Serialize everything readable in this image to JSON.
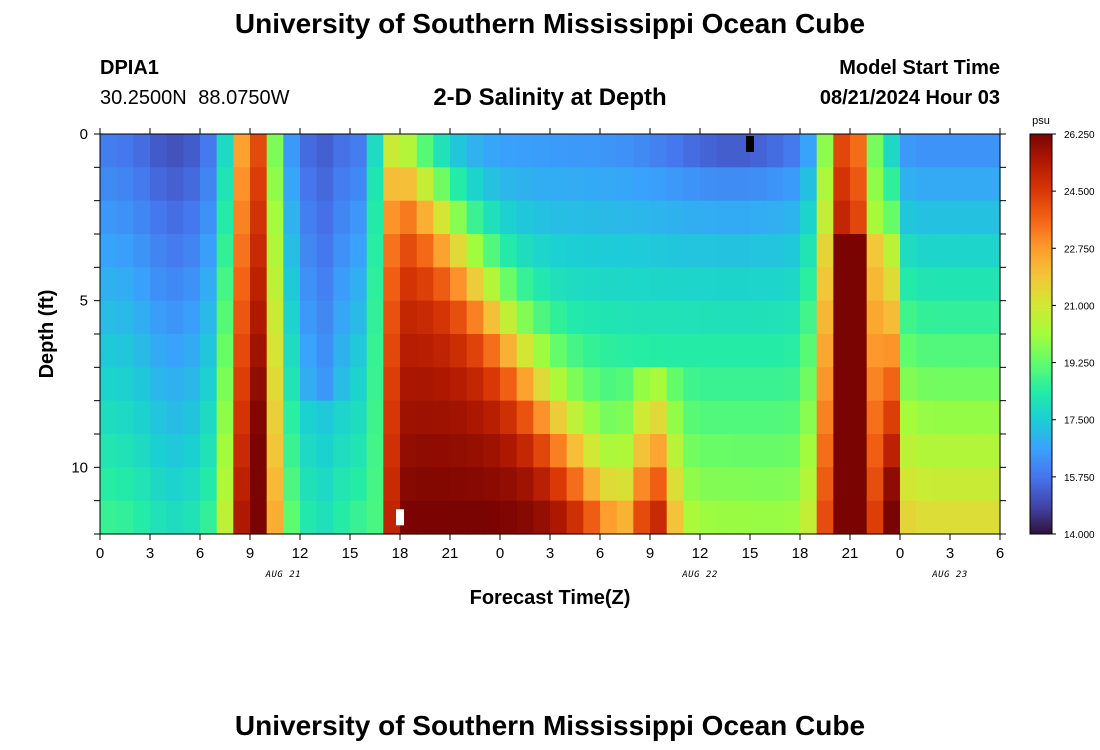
{
  "page": {
    "title_top": "University of Southern Mississippi Ocean Cube",
    "title_bottom": "University of Southern Mississippi Ocean Cube",
    "station_id": "DPIA1",
    "station_coords": "30.2500N  88.0750W",
    "plot_title": "2-D Salinity at Depth",
    "model_start_label": "Model Start Time",
    "model_start_value": "08/21/2024 Hour 03"
  },
  "chart_data": {
    "type": "heatmap",
    "title": "2-D Salinity at Depth",
    "xlabel": "Forecast Time(Z)",
    "ylabel": "Depth (ft)",
    "x_hours": [
      0,
      54
    ],
    "x_tick_labels": [
      "0",
      "3",
      "6",
      "9",
      "12",
      "15",
      "18",
      "21",
      "0",
      "3",
      "6",
      "9",
      "12",
      "15",
      "18",
      "21",
      "0",
      "3",
      "6"
    ],
    "date_labels": [
      {
        "text": "AUG 21",
        "hour": 11
      },
      {
        "text": "AUG 22",
        "hour": 36
      },
      {
        "text": "AUG 23",
        "hour": 51
      }
    ],
    "ylim": [
      0,
      12
    ],
    "y_major_ticks": [
      0,
      5,
      10
    ],
    "colorbar": {
      "unit": "psu",
      "min": 14.0,
      "max": 26.25,
      "tick_labels": [
        "26.250",
        "24.500",
        "22.750",
        "21.000",
        "19.250",
        "17.500",
        "15.750",
        "14.000"
      ],
      "colors": [
        "#30123b",
        "#4145ab",
        "#4675ed",
        "#39a2fc",
        "#1bcfd4",
        "#24eca6",
        "#61fc6c",
        "#a4fc3b",
        "#d1e834",
        "#f3c63a",
        "#fe9b2d",
        "#f36315",
        "#d93806",
        "#b11901",
        "#7a0402"
      ]
    },
    "depth_levels": 12,
    "time_steps": 54,
    "markers": [
      {
        "hour": 18,
        "depth": 11.5,
        "color": "#ffffff"
      },
      {
        "hour": 39,
        "depth": 0.3,
        "color": "#000000"
      }
    ],
    "salinity_description": "time-depth salinity field (psu)"
  }
}
